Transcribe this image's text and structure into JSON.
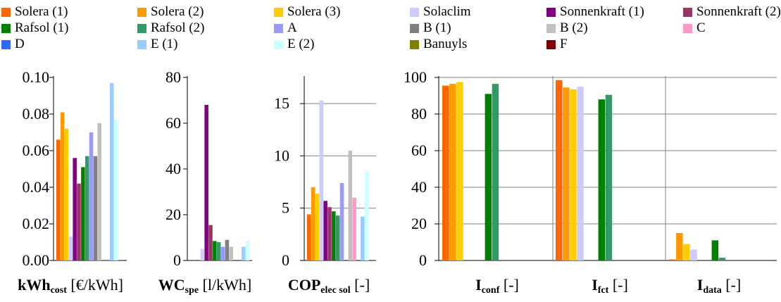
{
  "legend": {
    "items": [
      {
        "label": "Solera (1)",
        "color": "#ff6600"
      },
      {
        "label": "Solera (2)",
        "color": "#ff9900"
      },
      {
        "label": "Solera (3)",
        "color": "#ffcc00"
      },
      {
        "label": "Solaclim",
        "color": "#ccccff"
      },
      {
        "label": "Sonnenkraft (1)",
        "color": "#800080"
      },
      {
        "label": "Sonnenkraft (2)",
        "color": "#993366"
      },
      {
        "label": "Rafsol (1)",
        "color": "#008000"
      },
      {
        "label": "Rafsol (2)",
        "color": "#339966"
      },
      {
        "label": "A",
        "color": "#9999ff"
      },
      {
        "label": "B (1)",
        "color": "#808080"
      },
      {
        "label": "B (2)",
        "color": "#c0c0c0"
      },
      {
        "label": "C",
        "color": "#ff99cc"
      },
      {
        "label": "D",
        "color": "#3366ff"
      },
      {
        "label": "E (1)",
        "color": "#99ccff"
      },
      {
        "label": "E (2)",
        "color": "#ccffff"
      },
      {
        "label": "Banuyls",
        "color": "#808000"
      },
      {
        "label": "F",
        "color": "#800000"
      }
    ]
  },
  "chart_data": [
    {
      "type": "bar",
      "xlabel_main": "kWh",
      "xlabel_sub": "cost",
      "xlabel_unit": " [€/kWh]",
      "ylim": [
        0,
        0.1
      ],
      "yticks": [
        "0.00",
        "0.02",
        "0.04",
        "0.06",
        "0.08",
        "0.10"
      ],
      "grid": false,
      "values": [
        0.066,
        0.081,
        0.072,
        0.013,
        0.056,
        0.042,
        0.051,
        0.057,
        0.07,
        0.057,
        0.075,
        null,
        null,
        0.097,
        0.077,
        null,
        null
      ]
    },
    {
      "type": "bar",
      "xlabel_main": "WC",
      "xlabel_sub": "spe",
      "xlabel_unit": " [l/kWh]",
      "ylim": [
        0,
        80
      ],
      "yticks": [
        "0",
        "20",
        "40",
        "60",
        "80"
      ],
      "grid": false,
      "values": [
        null,
        null,
        null,
        5,
        68,
        15.5,
        8.5,
        8,
        6,
        9,
        6,
        null,
        null,
        6,
        8.5,
        null,
        null
      ]
    },
    {
      "type": "bar",
      "xlabel_main": "COP",
      "xlabel_sub": "elec sol",
      "xlabel_unit": " [-]",
      "ylim": [
        0,
        17.5
      ],
      "yticks": [
        "0",
        "5",
        "10",
        "15"
      ],
      "grid": true,
      "values": [
        4.4,
        7.0,
        6.4,
        15.3,
        5.7,
        5.1,
        4.7,
        4.3,
        7.4,
        null,
        10.5,
        6.0,
        null,
        4.2,
        8.5,
        null,
        null
      ]
    },
    {
      "type": "bar",
      "ylim": [
        0,
        100
      ],
      "yticks": [
        "0",
        "20",
        "40",
        "60",
        "80",
        "100"
      ],
      "grid": true,
      "panels": [
        {
          "xlabel_main": "I",
          "xlabel_sub": "conf",
          "xlabel_unit": " [-]",
          "values": [
            95.5,
            96.5,
            97.5,
            null,
            null,
            null,
            91,
            96.5,
            null,
            null,
            null,
            null,
            null,
            null,
            null,
            null,
            null
          ]
        },
        {
          "xlabel_main": "I",
          "xlabel_sub": "fct",
          "xlabel_unit": " [-]",
          "values": [
            98.5,
            94.5,
            93.5,
            95,
            null,
            null,
            88,
            90.5,
            null,
            null,
            null,
            null,
            null,
            null,
            null,
            null,
            null
          ]
        },
        {
          "xlabel_main": "I",
          "xlabel_sub": "data",
          "xlabel_unit": " [-]",
          "values": [
            0.6,
            15,
            9,
            6,
            null,
            null,
            11,
            1.5,
            null,
            null,
            null,
            null,
            null,
            null,
            null,
            null,
            null
          ]
        }
      ]
    }
  ]
}
